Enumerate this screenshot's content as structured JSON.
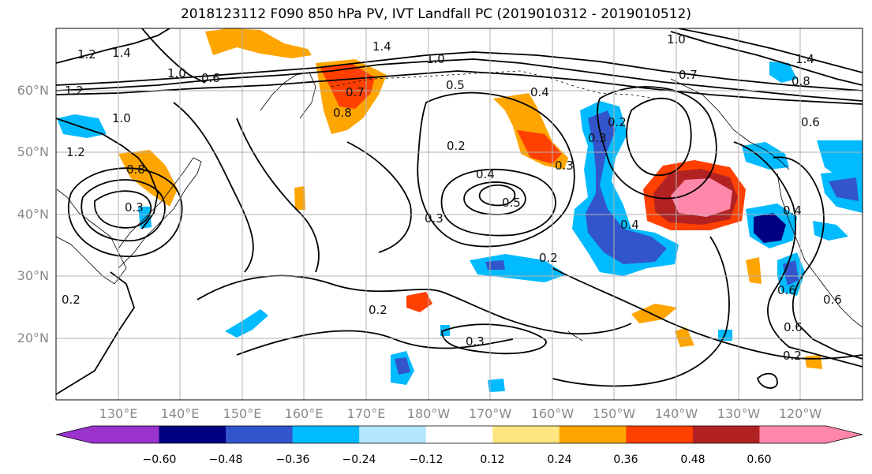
{
  "title": "2018123112 F090 850 hPa PV, IVT Landfall PC (2019010312 - 2019010512)",
  "lat_labels": [
    "60°N",
    "50°N",
    "40°N",
    "30°N",
    "20°N"
  ],
  "lon_labels": [
    "130°E",
    "140°E",
    "150°E",
    "160°E",
    "170°E",
    "180°W",
    "170°W",
    "160°W",
    "150°W",
    "140°W",
    "130°W",
    "120°W"
  ],
  "colorbar": {
    "tick_labels": [
      "−0.60",
      "−0.48",
      "−0.36",
      "−0.24",
      "−0.12",
      "0.12",
      "0.24",
      "0.36",
      "0.48",
      "0.60"
    ],
    "colors": [
      "#9933cc",
      "#000080",
      "#3355cc",
      "#00bbff",
      "#b3e6ff",
      "#ffffff",
      "#ffe680",
      "#ffa500",
      "#ff4000",
      "#b22222",
      "#ff88aa"
    ]
  },
  "contour_labels": [
    "1.2",
    "1.4",
    "1.2",
    "1.0",
    "0.6",
    "1.4",
    "1.0",
    "0.5",
    "0.4",
    "0.7",
    "0.8",
    "1.0",
    "0.7",
    "1.4",
    "0.8",
    "0.6",
    "1.0",
    "1.2",
    "0.8",
    "0.3",
    "0.2",
    "0.4",
    "0.5",
    "0.3",
    "0.2",
    "0.4",
    "0.3",
    "0.2",
    "0.3",
    "0.6",
    "0.6",
    "0.6",
    "0.4",
    "0.2",
    "0.2",
    "0.2",
    "0.3"
  ]
}
